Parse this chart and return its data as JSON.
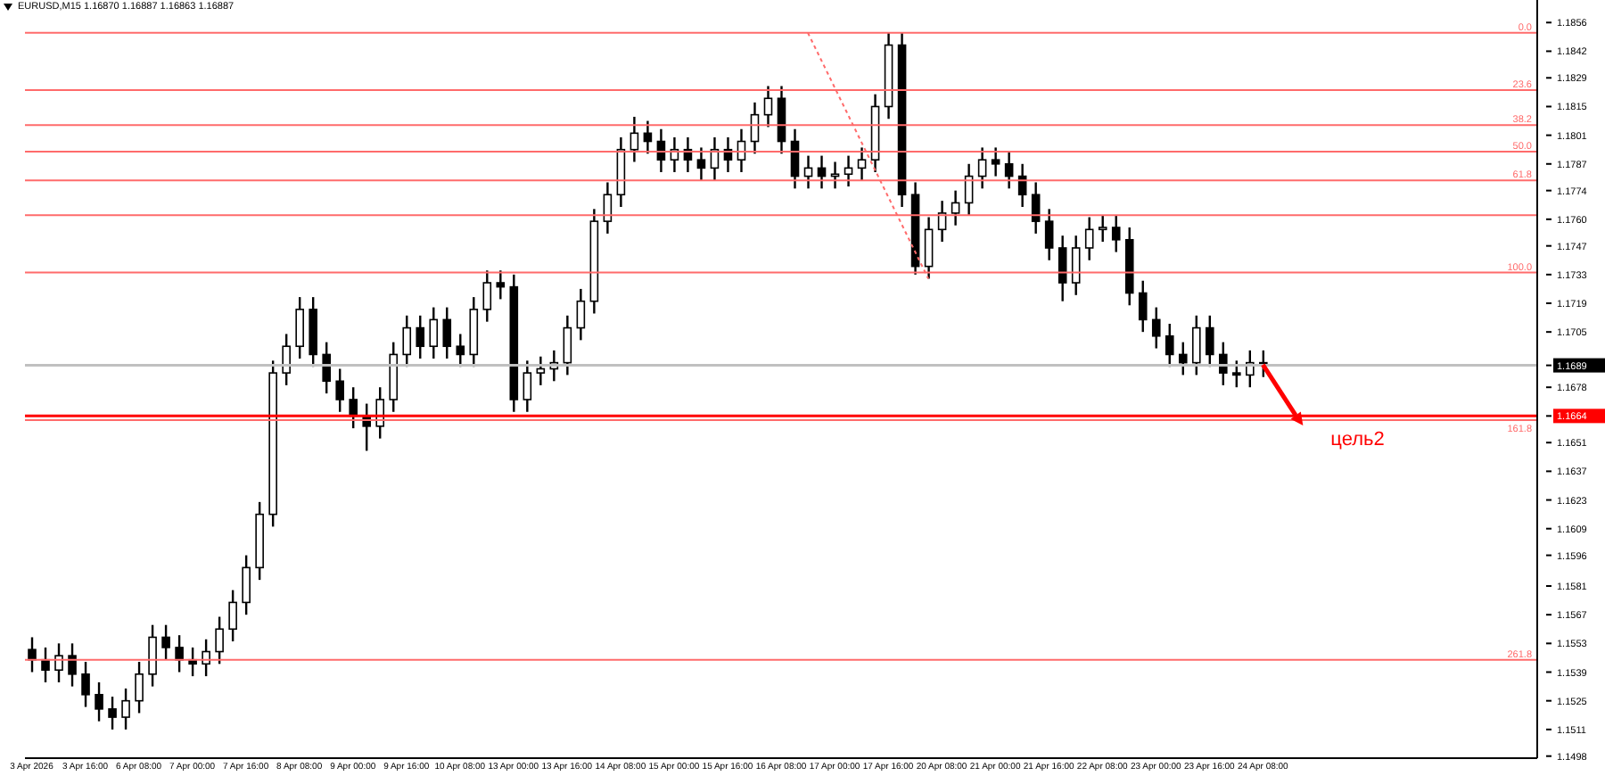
{
  "chart_data": {
    "type": "candlestick",
    "title": "EURUSD,M15  1.16870 1.16887 1.16863 1.16887",
    "color": "#000000",
    "categories": [
      "3 Apr 2026",
      null,
      null,
      null,
      "3 Apr 16:00",
      null,
      null,
      null,
      "6 Apr 08:00",
      null,
      null,
      null,
      "7 Apr 00:00",
      null,
      null,
      null,
      "7 Apr 16:00",
      null,
      null,
      null,
      "8 Apr 08:00",
      null,
      null,
      null,
      "9 Apr 00:00",
      null,
      null,
      null,
      "9 Apr 16:00",
      null,
      null,
      null,
      "10 Apr 08:00",
      null,
      null,
      null,
      "13 Apr 00:00",
      null,
      null,
      null,
      "13 Apr 16:00",
      null,
      null,
      null,
      "14 Apr 08:00",
      null,
      null,
      null,
      "15 Apr 00:00",
      null,
      null,
      null,
      "15 Apr 16:00",
      null,
      null,
      null,
      "16 Apr 08:00",
      null,
      null,
      null,
      "17 Apr 00:00",
      null,
      null,
      null,
      "17 Apr 16:00",
      null,
      null,
      null,
      "20 Apr 08:00",
      null,
      null,
      null,
      "21 Apr 00:00",
      null,
      null,
      null,
      "21 Apr 16:00",
      null,
      null,
      null,
      "22 Apr 08:00",
      null,
      null,
      null,
      "23 Apr 00:00",
      null,
      null,
      null,
      "23 Apr 16:00",
      null,
      null,
      null,
      "24 Apr 08:00",
      null,
      null,
      null,
      null,
      null,
      null,
      null,
      null,
      null,
      null,
      null,
      null,
      null,
      null,
      null,
      null,
      null,
      null,
      null,
      null
    ],
    "ohlc": [
      [
        1.155,
        1.1556,
        1.1539,
        1.1545
      ],
      [
        1.1545,
        1.1551,
        1.1534,
        1.154
      ],
      [
        1.154,
        1.1553,
        1.1534,
        1.1547
      ],
      [
        1.1547,
        1.1553,
        1.1532,
        1.1538
      ],
      [
        1.1538,
        1.1544,
        1.1522,
        1.1528
      ],
      [
        1.1528,
        1.1534,
        1.1515,
        1.1521
      ],
      [
        1.1521,
        1.1527,
        1.1511,
        1.1517
      ],
      [
        1.1517,
        1.1531,
        1.1511,
        1.1525
      ],
      [
        1.1525,
        1.1544,
        1.1519,
        1.1538
      ],
      [
        1.1538,
        1.1562,
        1.1532,
        1.1556
      ],
      [
        1.1556,
        1.1562,
        1.1545,
        1.1551
      ],
      [
        1.1551,
        1.1557,
        1.1539,
        1.1545
      ],
      [
        1.1545,
        1.1551,
        1.1537,
        1.1543
      ],
      [
        1.1543,
        1.1555,
        1.1537,
        1.1549
      ],
      [
        1.1549,
        1.1566,
        1.1543,
        1.156
      ],
      [
        1.156,
        1.1579,
        1.1554,
        1.1573
      ],
      [
        1.1573,
        1.1596,
        1.1567,
        1.159
      ],
      [
        1.159,
        1.1622,
        1.1584,
        1.1616
      ],
      [
        1.1616,
        1.1691,
        1.161,
        1.1685
      ],
      [
        1.1685,
        1.1704,
        1.1679,
        1.1698
      ],
      [
        1.1698,
        1.1722,
        1.1692,
        1.1716
      ],
      [
        1.1716,
        1.1722,
        1.1688,
        1.1694
      ],
      [
        1.1694,
        1.17,
        1.1675,
        1.1681
      ],
      [
        1.1681,
        1.1687,
        1.1666,
        1.1672
      ],
      [
        1.1672,
        1.1678,
        1.1658,
        1.1664
      ],
      [
        1.1664,
        1.167,
        1.1647,
        1.1659
      ],
      [
        1.1659,
        1.1678,
        1.1653,
        1.1672
      ],
      [
        1.1672,
        1.17,
        1.1666,
        1.1694
      ],
      [
        1.1694,
        1.1713,
        1.1688,
        1.1707
      ],
      [
        1.1707,
        1.1713,
        1.1692,
        1.1698
      ],
      [
        1.1698,
        1.1717,
        1.1692,
        1.1711
      ],
      [
        1.1711,
        1.1717,
        1.1692,
        1.1698
      ],
      [
        1.1698,
        1.1704,
        1.1688,
        1.1694
      ],
      [
        1.1694,
        1.1722,
        1.1688,
        1.1716
      ],
      [
        1.1716,
        1.1735,
        1.171,
        1.1729
      ],
      [
        1.1729,
        1.1735,
        1.1721,
        1.1727
      ],
      [
        1.1727,
        1.1733,
        1.1666,
        1.1672
      ],
      [
        1.1672,
        1.1691,
        1.1666,
        1.1685
      ],
      [
        1.1685,
        1.1693,
        1.1679,
        1.1687
      ],
      [
        1.1687,
        1.1696,
        1.1681,
        1.169
      ],
      [
        1.169,
        1.1713,
        1.1684,
        1.1707
      ],
      [
        1.1707,
        1.1726,
        1.1701,
        1.172
      ],
      [
        1.172,
        1.1765,
        1.1714,
        1.1759
      ],
      [
        1.1759,
        1.1778,
        1.1753,
        1.1772
      ],
      [
        1.1772,
        1.18,
        1.1766,
        1.1794
      ],
      [
        1.1794,
        1.181,
        1.1788,
        1.1802
      ],
      [
        1.1802,
        1.1808,
        1.1792,
        1.1798
      ],
      [
        1.1798,
        1.1804,
        1.1783,
        1.1789
      ],
      [
        1.1789,
        1.18,
        1.1783,
        1.1794
      ],
      [
        1.1794,
        1.18,
        1.1783,
        1.1789
      ],
      [
        1.1789,
        1.1795,
        1.1779,
        1.1785
      ],
      [
        1.1785,
        1.18,
        1.1779,
        1.1794
      ],
      [
        1.1794,
        1.18,
        1.1783,
        1.1789
      ],
      [
        1.1789,
        1.1804,
        1.1783,
        1.1798
      ],
      [
        1.1798,
        1.1817,
        1.1792,
        1.1811
      ],
      [
        1.1811,
        1.1825,
        1.1805,
        1.1819
      ],
      [
        1.1819,
        1.1825,
        1.1792,
        1.1798
      ],
      [
        1.1798,
        1.1804,
        1.1775,
        1.1781
      ],
      [
        1.1781,
        1.1791,
        1.1775,
        1.1785
      ],
      [
        1.1785,
        1.1791,
        1.1775,
        1.1781
      ],
      [
        1.1781,
        1.1788,
        1.1775,
        1.1782
      ],
      [
        1.1782,
        1.1791,
        1.1776,
        1.1785
      ],
      [
        1.1785,
        1.1795,
        1.1779,
        1.1789
      ],
      [
        1.1789,
        1.1821,
        1.1783,
        1.1815
      ],
      [
        1.1815,
        1.1851,
        1.1809,
        1.1845
      ],
      [
        1.1845,
        1.1851,
        1.1766,
        1.1772
      ],
      [
        1.1772,
        1.1778,
        1.1733,
        1.1737
      ],
      [
        1.1737,
        1.1761,
        1.1731,
        1.1755
      ],
      [
        1.1755,
        1.1769,
        1.1749,
        1.1763
      ],
      [
        1.1763,
        1.1774,
        1.1757,
        1.1768
      ],
      [
        1.1768,
        1.1787,
        1.1762,
        1.1781
      ],
      [
        1.1781,
        1.1795,
        1.1775,
        1.1789
      ],
      [
        1.1789,
        1.1795,
        1.1781,
        1.1787
      ],
      [
        1.1787,
        1.1793,
        1.1775,
        1.1781
      ],
      [
        1.1781,
        1.1787,
        1.1766,
        1.1772
      ],
      [
        1.1772,
        1.1778,
        1.1753,
        1.1759
      ],
      [
        1.1759,
        1.1765,
        1.174,
        1.1746
      ],
      [
        1.1746,
        1.1752,
        1.172,
        1.1729
      ],
      [
        1.1729,
        1.1752,
        1.1723,
        1.1746
      ],
      [
        1.1746,
        1.1761,
        1.174,
        1.1755
      ],
      [
        1.1755,
        1.1762,
        1.1749,
        1.1756
      ],
      [
        1.1756,
        1.1762,
        1.1744,
        1.175
      ],
      [
        1.175,
        1.1756,
        1.1718,
        1.1724
      ],
      [
        1.1724,
        1.173,
        1.1705,
        1.1711
      ],
      [
        1.1711,
        1.1717,
        1.1697,
        1.1703
      ],
      [
        1.1703,
        1.1709,
        1.1688,
        1.1694
      ],
      [
        1.1694,
        1.17,
        1.1684,
        1.169
      ],
      [
        1.169,
        1.1713,
        1.1684,
        1.1707
      ],
      [
        1.1707,
        1.1713,
        1.1688,
        1.1694
      ],
      [
        1.1694,
        1.17,
        1.1679,
        1.1685
      ],
      [
        1.1685,
        1.1691,
        1.1678,
        1.1684
      ],
      [
        1.1684,
        1.1696,
        1.1678,
        1.169
      ],
      [
        1.169,
        1.1696,
        1.1683,
        1.1689
      ],
      null,
      null,
      null,
      null,
      null,
      null,
      null,
      null,
      null,
      null,
      null,
      null,
      null,
      null,
      null,
      null,
      null,
      null,
      null,
      null
    ],
    "ylim": [
      1.1497,
      1.1867
    ],
    "yticks": [
      1.1856,
      1.1842,
      1.1829,
      1.1815,
      1.1801,
      1.1787,
      1.1774,
      {
        "value": 1.176,
        "label": "1.1760"
      },
      1.1747,
      1.1733,
      1.1719,
      1.1705,
      {
        "value": 1.16887,
        "label": "1.1689"
      },
      1.1678,
      {
        "value": 1.1664,
        "label": "1.1664"
      },
      1.1651,
      1.1637,
      1.1623,
      1.1609,
      1.1596,
      1.1581,
      1.1567,
      1.1553,
      1.1539,
      1.1525,
      1.1511,
      1.1498
    ],
    "ref_lines": [
      {
        "axis": "y",
        "value": 1.1851,
        "color": "#ff6b6b"
      },
      {
        "axis": "y",
        "value": 1.1823,
        "color": "#ff6b6b"
      },
      {
        "axis": "y",
        "value": 1.1806,
        "color": "#ff6b6b"
      },
      {
        "axis": "y",
        "value": 1.1793,
        "color": "#ff6b6b"
      },
      {
        "axis": "y",
        "value": 1.1779,
        "color": "#ff6b6b"
      },
      {
        "axis": "y",
        "value": 1.1762,
        "color": "#ff6b6b"
      },
      {
        "axis": "y",
        "value": 1.1734,
        "color": "#ff6b6b"
      },
      {
        "axis": "y",
        "value": 1.1662,
        "color": "#ff6b6b"
      },
      {
        "axis": "y",
        "value": 1.1545,
        "color": "#ff6b6b"
      },
      {
        "axis": "y",
        "value": 1.1664,
        "color": "#ff0000"
      },
      {
        "axis": "y",
        "value": 1.16887,
        "color": "#c0c0c0"
      }
    ],
    "annotations": [
      {
        "text": "0.0",
        "y": 1.1851
      },
      {
        "text": "23.6",
        "y": 1.1823
      },
      {
        "text": "38.2",
        "y": 1.1806
      },
      {
        "text": "50.0",
        "y": 1.1793
      },
      {
        "text": "61.8",
        "y": 1.1779
      },
      {
        "text": "100.0",
        "y": 1.1734
      },
      {
        "text": "161.8",
        "y": 1.1662
      },
      {
        "text": "261.8",
        "y": 1.1545
      },
      "цель2"
    ]
  }
}
